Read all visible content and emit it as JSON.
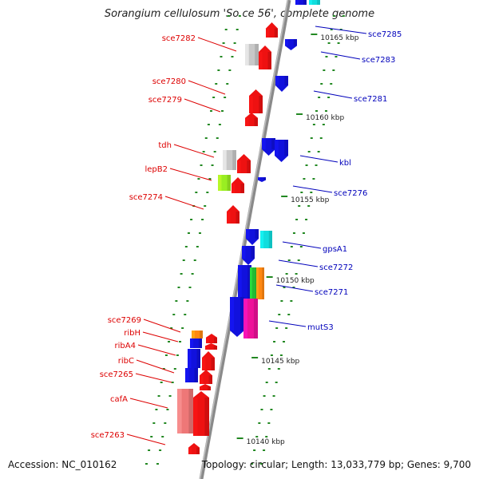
{
  "title": "Sorangium cellulosum 'So ce 56', complete genome",
  "footer": {
    "accession": "Accession: NC_010162",
    "summary": "Topology: circular; Length: 13,033,779 bp; Genes: 9,700"
  },
  "colors": {
    "backbone": "#8a8a8a",
    "left_label": "#dd0000",
    "right_label": "#0000bb",
    "tick": "#228822",
    "gene_red": "#ee1111",
    "gene_blue": "#1111dd",
    "gene_cyan": "#11dddd",
    "gene_grey": "#c8c8c8",
    "gene_lime": "#99ee22",
    "gene_green": "#22bb33",
    "gene_orange": "#ff8811",
    "gene_magenta": "#ee1199",
    "gene_pink": "#ee7777"
  },
  "scale_labels": [
    "10165 kbp",
    "10160 kbp",
    "10155 kbp",
    "10150 kbp",
    "10145 kbp",
    "10140 kbp"
  ],
  "left_genes": [
    "sce7282",
    "sce7280",
    "sce7279",
    "tdh",
    "lepB2",
    "sce7274",
    "sce7269",
    "ribH",
    "ribA4",
    "ribC",
    "sce7265",
    "cafA",
    "sce7263"
  ],
  "right_genes": [
    "sce7285",
    "sce7283",
    "sce7281",
    "kbl",
    "sce7276",
    "gpsA1",
    "sce7272",
    "sce7271",
    "mutS3"
  ]
}
